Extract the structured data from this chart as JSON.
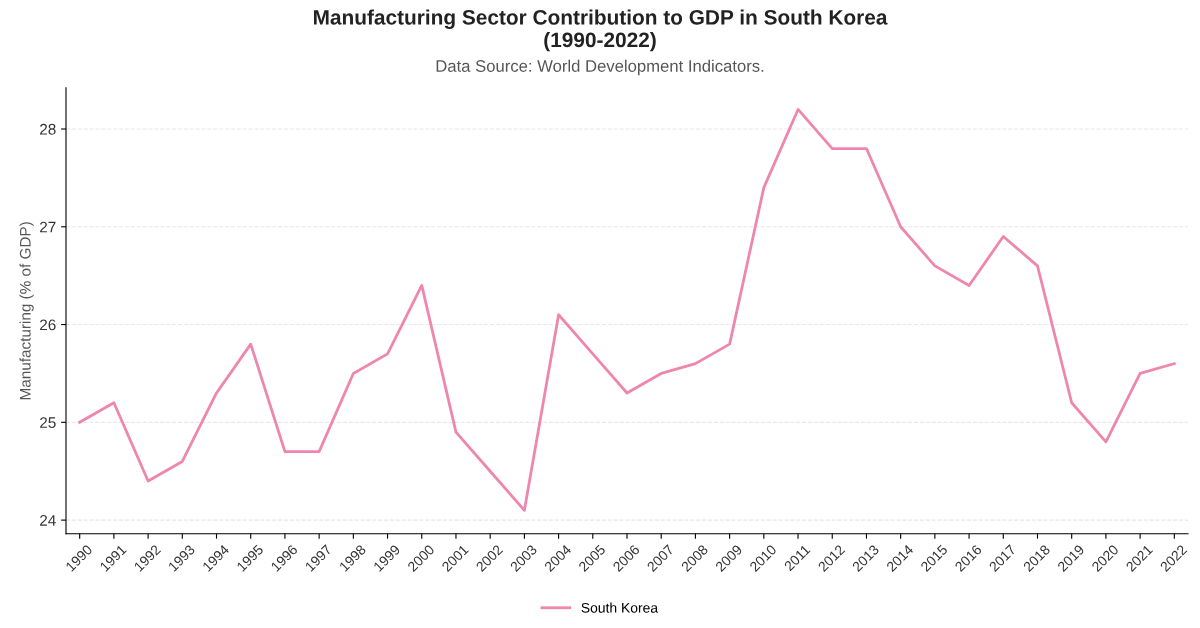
{
  "chart_data": {
    "type": "line",
    "title": "Manufacturing Sector Contribution to GDP in South Korea\n(1990-2022)",
    "subtitle": "Data Source: World Development Indicators.",
    "ylabel": "Manufacturing (% of GDP)",
    "categories": [
      "1990",
      "1991",
      "1992",
      "1993",
      "1994",
      "1995",
      "1996",
      "1997",
      "1998",
      "1999",
      "2000",
      "2001",
      "2002",
      "2003",
      "2004",
      "2005",
      "2006",
      "2007",
      "2008",
      "2009",
      "2010",
      "2011",
      "2012",
      "2013",
      "2014",
      "2015",
      "2016",
      "2017",
      "2018",
      "2019",
      "2020",
      "2021",
      "2022"
    ],
    "series": [
      {
        "name": "South Korea",
        "color": "#ee86ad",
        "values": [
          25.0,
          25.2,
          24.4,
          24.6,
          25.3,
          25.8,
          24.7,
          24.7,
          25.5,
          25.7,
          26.4,
          24.9,
          24.5,
          24.1,
          26.1,
          25.7,
          25.3,
          25.5,
          25.6,
          25.8,
          27.4,
          28.2,
          27.8,
          27.8,
          27.0,
          26.6,
          26.4,
          26.9,
          26.6,
          25.2,
          24.8,
          25.5,
          25.6
        ]
      }
    ],
    "ylim": [
      23.86,
      28.42
    ],
    "yticks": [
      24,
      25,
      26,
      27,
      28
    ],
    "grid": "y",
    "legend": "bottom",
    "marker": "none",
    "line_style": "solid"
  }
}
